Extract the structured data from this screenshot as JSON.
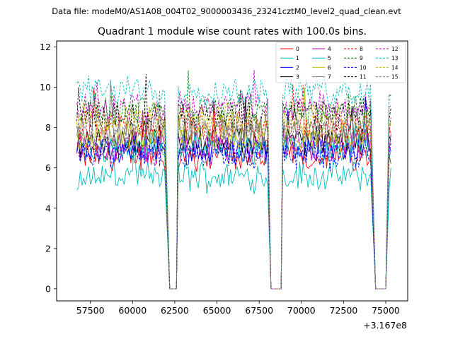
{
  "figure": {
    "suptitle": "Data file: modeM0/AS1A08_004T02_9000003436_23241cztM0_level2_quad_clean.evt"
  },
  "chart_data": {
    "type": "line",
    "title": "Quadrant 1 module wise count rates with 100.0s bins.",
    "xlabel": "",
    "ylabel": "",
    "x_offset_label": "+3.167e8",
    "xlim": [
      55500,
      76300
    ],
    "ylim": [
      -0.6,
      12.3
    ],
    "xticks": [
      57500,
      60000,
      62500,
      65000,
      67500,
      70000,
      72500,
      75000
    ],
    "xtick_labels": [
      "57500",
      "60000",
      "62500",
      "65000",
      "67500",
      "70000",
      "72500",
      "75000"
    ],
    "yticks": [
      0,
      2,
      4,
      6,
      8,
      10,
      12
    ],
    "ytick_labels": [
      "0",
      "2",
      "4",
      "6",
      "8",
      "10",
      "12"
    ],
    "grid": false,
    "legend_position": "top-right",
    "legend_columns": 4,
    "segments": [
      {
        "x_start": 56700,
        "x_end": 61900
      },
      {
        "x_start": 62700,
        "x_end": 68000
      },
      {
        "x_start": 68900,
        "x_end": 74100
      },
      {
        "x_start": 75200,
        "x_end": 75300
      }
    ],
    "gaps": [
      {
        "x_start": 62200,
        "x_end": 62600
      },
      {
        "x_start": 68200,
        "x_end": 68800
      },
      {
        "x_start": 74400,
        "x_end": 75000
      }
    ],
    "series": [
      {
        "name": "0",
        "color": "#ff0000",
        "dashed": false,
        "level": 6.6
      },
      {
        "name": "1",
        "color": "#00bfbf",
        "dashed": false,
        "level": 5.6
      },
      {
        "name": "2",
        "color": "#0000ff",
        "dashed": false,
        "level": 6.9
      },
      {
        "name": "3",
        "color": "#000000",
        "dashed": false,
        "level": 7.4
      },
      {
        "name": "4",
        "color": "#bf00bf",
        "dashed": false,
        "level": 7.1
      },
      {
        "name": "5",
        "color": "#00bfbf",
        "dashed": false,
        "level": 7.0
      },
      {
        "name": "6",
        "color": "#bfbf00",
        "dashed": false,
        "level": 7.6
      },
      {
        "name": "7",
        "color": "#808080",
        "dashed": false,
        "level": 7.9
      },
      {
        "name": "8",
        "color": "#ff0000",
        "dashed": true,
        "level": 8.1
      },
      {
        "name": "9",
        "color": "#008000",
        "dashed": true,
        "level": 8.9
      },
      {
        "name": "10",
        "color": "#0000ff",
        "dashed": true,
        "level": 6.7
      },
      {
        "name": "11",
        "color": "#000000",
        "dashed": true,
        "level": 8.6
      },
      {
        "name": "12",
        "color": "#bf00bf",
        "dashed": true,
        "level": 9.0
      },
      {
        "name": "13",
        "color": "#00bfbf",
        "dashed": true,
        "level": 9.8
      },
      {
        "name": "14",
        "color": "#bfbf00",
        "dashed": true,
        "level": 8.4
      },
      {
        "name": "15",
        "color": "#808080",
        "dashed": true,
        "level": 7.8
      }
    ]
  }
}
